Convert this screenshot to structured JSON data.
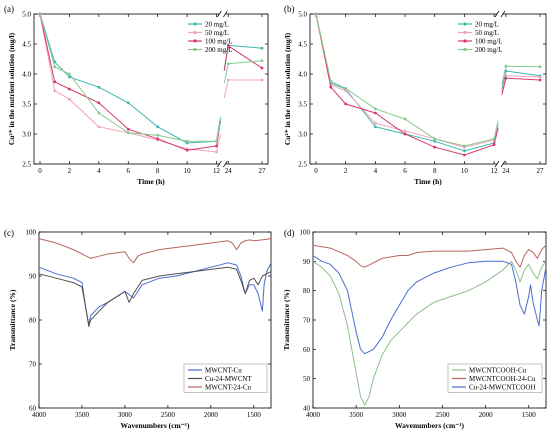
{
  "chart_data": [
    {
      "panel": "(a)",
      "type": "line",
      "xlabel": "Time (h)",
      "ylabel": "Cu²⁺ in the nutrient solution (mg/l)",
      "ylim": [
        2.5,
        5.0
      ],
      "yticks": [
        "2.5",
        "3.0",
        "3.5",
        "4.0",
        "4.5",
        "5.0"
      ],
      "xticks": [
        "0",
        "2",
        "4",
        "6",
        "8",
        "10",
        "12",
        "24",
        "27"
      ],
      "axis_break": "between 12 and 24",
      "legend_position": "top-right",
      "series": [
        {
          "name": "20 mg/L",
          "color": "#3cb8b0",
          "x": [
            0,
            1,
            2,
            4,
            6,
            8,
            10,
            12,
            24,
            27
          ],
          "y": [
            5.0,
            4.2,
            3.95,
            3.78,
            3.52,
            3.12,
            2.85,
            2.88,
            4.48,
            4.43
          ]
        },
        {
          "name": "50 mg/L",
          "color": "#f0a4bc",
          "x": [
            0,
            1,
            2,
            4,
            6,
            8,
            10,
            12,
            24,
            27
          ],
          "y": [
            5.0,
            3.72,
            3.58,
            3.12,
            3.02,
            2.9,
            2.75,
            2.7,
            3.9,
            3.9
          ]
        },
        {
          "name": "100 mg/L",
          "color": "#d63a6a",
          "x": [
            0,
            1,
            2,
            4,
            6,
            8,
            10,
            12,
            24,
            27
          ],
          "y": [
            5.0,
            3.87,
            3.75,
            3.52,
            3.08,
            2.92,
            2.73,
            2.8,
            4.47,
            4.1
          ]
        },
        {
          "name": "200 mg/L",
          "color": "#86c98a",
          "x": [
            0,
            1,
            2,
            4,
            6,
            8,
            10,
            12,
            24,
            27
          ],
          "y": [
            5.0,
            4.12,
            4.0,
            3.35,
            3.02,
            2.98,
            2.88,
            2.88,
            4.17,
            4.22
          ]
        }
      ]
    },
    {
      "panel": "(b)",
      "type": "line",
      "xlabel": "Time (h)",
      "ylabel": "Cu²⁺ in the nutrient solution (mg/l)",
      "ylim": [
        2.5,
        5.0
      ],
      "yticks": [
        "2.5",
        "3.0",
        "3.5",
        "4.0",
        "4.5",
        "5.0"
      ],
      "xticks": [
        "0",
        "2",
        "4",
        "6",
        "8",
        "10",
        "12",
        "24",
        "27"
      ],
      "axis_break": "between 12 and 24",
      "legend_position": "top-right",
      "series": [
        {
          "name": "20 mg/L",
          "color": "#3cb8b0",
          "x": [
            0,
            1,
            2,
            4,
            6,
            8,
            10,
            12,
            24,
            27
          ],
          "y": [
            5.0,
            3.85,
            3.75,
            3.12,
            3.0,
            2.88,
            2.72,
            2.85,
            4.05,
            3.97
          ]
        },
        {
          "name": "50 mg/L",
          "color": "#f0a4bc",
          "x": [
            0,
            1,
            2,
            4,
            6,
            8,
            10,
            12,
            24,
            27
          ],
          "y": [
            5.0,
            3.82,
            3.72,
            3.18,
            3.05,
            2.92,
            2.78,
            2.9,
            3.97,
            3.95
          ]
        },
        {
          "name": "100 mg/L",
          "color": "#d63a6a",
          "x": [
            0,
            1,
            2,
            4,
            6,
            8,
            10,
            12,
            24,
            27
          ],
          "y": [
            5.0,
            3.78,
            3.5,
            3.35,
            3.0,
            2.78,
            2.65,
            2.82,
            3.93,
            3.9
          ]
        },
        {
          "name": "200 mg/L",
          "color": "#86c98a",
          "x": [
            0,
            1,
            2,
            4,
            6,
            8,
            10,
            12,
            24,
            27
          ],
          "y": [
            5.0,
            3.88,
            3.76,
            3.42,
            3.25,
            2.92,
            2.8,
            2.92,
            4.13,
            4.12
          ]
        }
      ]
    },
    {
      "panel": "(c)",
      "type": "line",
      "xlabel": "Wavenumbers (cm⁻¹)",
      "ylabel": "Transmittance (%)",
      "xlim": [
        4000,
        1300
      ],
      "ylim": [
        60,
        100
      ],
      "yticks": [
        "60",
        "70",
        "80",
        "90",
        "100"
      ],
      "xticks": [
        "4000",
        "3500",
        "3000",
        "2500",
        "2000",
        "1500"
      ],
      "legend_position": "bottom-right",
      "series": [
        {
          "name": "MWCNT-Cu",
          "color": "#4a6ccf",
          "x": [
            4000,
            3800,
            3600,
            3500,
            3450,
            3420,
            3400,
            3300,
            3200,
            3000,
            2900,
            2800,
            2600,
            2400,
            2200,
            2000,
            1800,
            1700,
            1650,
            1600,
            1550,
            1500,
            1450,
            1400,
            1380,
            1350,
            1300
          ],
          "y": [
            92,
            90.5,
            89.5,
            88.5,
            82,
            79,
            81,
            83,
            84,
            86.5,
            85,
            88,
            89.5,
            90,
            91,
            92,
            93,
            92.5,
            90,
            86,
            88,
            88,
            86,
            82,
            88,
            91,
            93
          ]
        },
        {
          "name": "Cu-24-MWCNT",
          "color": "#555050",
          "x": [
            4000,
            3800,
            3600,
            3500,
            3450,
            3420,
            3400,
            3300,
            3200,
            3000,
            2950,
            2900,
            2800,
            2600,
            2400,
            2200,
            2000,
            1800,
            1700,
            1650,
            1600,
            1550,
            1500,
            1450,
            1400,
            1300
          ],
          "y": [
            90.5,
            89.5,
            88.5,
            87.5,
            82,
            78.5,
            80,
            82,
            84,
            86.5,
            84,
            86,
            89,
            90,
            90.5,
            91,
            91.5,
            92,
            91.5,
            89,
            86,
            89,
            89.5,
            88,
            90,
            91
          ]
        },
        {
          "name": "MWCNT-24-Cu",
          "color": "#b8675e",
          "x": [
            4000,
            3800,
            3600,
            3500,
            3450,
            3400,
            3300,
            3200,
            3000,
            2950,
            2900,
            2850,
            2800,
            2600,
            2400,
            2200,
            2000,
            1800,
            1750,
            1700,
            1650,
            1600,
            1550,
            1500,
            1400,
            1300
          ],
          "y": [
            98.5,
            97.5,
            96,
            95,
            94.5,
            94,
            94.5,
            95,
            95.5,
            94,
            93,
            94.5,
            95,
            96,
            96.5,
            97,
            97.5,
            98,
            97.5,
            96,
            97.5,
            98,
            98.2,
            98,
            98.2,
            98.5
          ]
        }
      ]
    },
    {
      "panel": "(d)",
      "type": "line",
      "xlabel": "Wavenumbers (cm⁻¹)",
      "ylabel": "Transmittance (%)",
      "xlim": [
        4000,
        1300
      ],
      "ylim": [
        40,
        100
      ],
      "yticks": [
        "40",
        "50",
        "60",
        "70",
        "80",
        "90",
        "100"
      ],
      "xticks": [
        "4000",
        "3500",
        "3000",
        "2500",
        "2000",
        "1500"
      ],
      "legend_position": "bottom-right",
      "series": [
        {
          "name": "MWCNTCOOH-Cu",
          "color": "#8fbf8a",
          "x": [
            4000,
            3900,
            3800,
            3700,
            3600,
            3500,
            3450,
            3400,
            3350,
            3300,
            3200,
            3100,
            3000,
            2900,
            2800,
            2600,
            2400,
            2200,
            2000,
            1800,
            1700,
            1650,
            1600,
            1550,
            1500,
            1450,
            1400,
            1350,
            1300
          ],
          "y": [
            90,
            88,
            85,
            79,
            68,
            52,
            44,
            41,
            44,
            50,
            58,
            63,
            66,
            69,
            72,
            76,
            78,
            80,
            83,
            87,
            90,
            87,
            83,
            87,
            89,
            86,
            84,
            88,
            90
          ]
        },
        {
          "name": "MWCNTCOOH-24-Cu",
          "color": "#b8675e",
          "x": [
            4000,
            3800,
            3600,
            3500,
            3450,
            3400,
            3300,
            3200,
            3000,
            2900,
            2800,
            2600,
            2400,
            2200,
            2000,
            1800,
            1700,
            1650,
            1600,
            1550,
            1500,
            1450,
            1400,
            1350,
            1300
          ],
          "y": [
            95.5,
            94.5,
            92,
            90,
            88.5,
            88,
            89.5,
            91,
            92,
            92,
            93,
            93.5,
            93.5,
            93.5,
            94,
            94.5,
            93,
            90,
            88,
            92,
            94,
            93,
            91,
            94,
            95.5
          ]
        },
        {
          "name": "Cu-24-MWCNTCOOH",
          "color": "#4a6ccf",
          "x": [
            4000,
            3900,
            3800,
            3700,
            3600,
            3500,
            3450,
            3400,
            3300,
            3200,
            3100,
            3000,
            2900,
            2800,
            2600,
            2400,
            2200,
            2000,
            1800,
            1700,
            1650,
            1600,
            1550,
            1500,
            1480,
            1450,
            1400,
            1380,
            1350,
            1300
          ],
          "y": [
            92,
            90,
            89,
            86,
            80,
            66,
            60,
            58.5,
            60,
            64,
            70,
            75,
            80,
            83,
            86,
            88,
            89.5,
            90,
            90,
            89,
            83,
            75,
            72,
            78,
            82,
            76,
            70,
            68,
            80,
            88
          ]
        }
      ]
    }
  ]
}
